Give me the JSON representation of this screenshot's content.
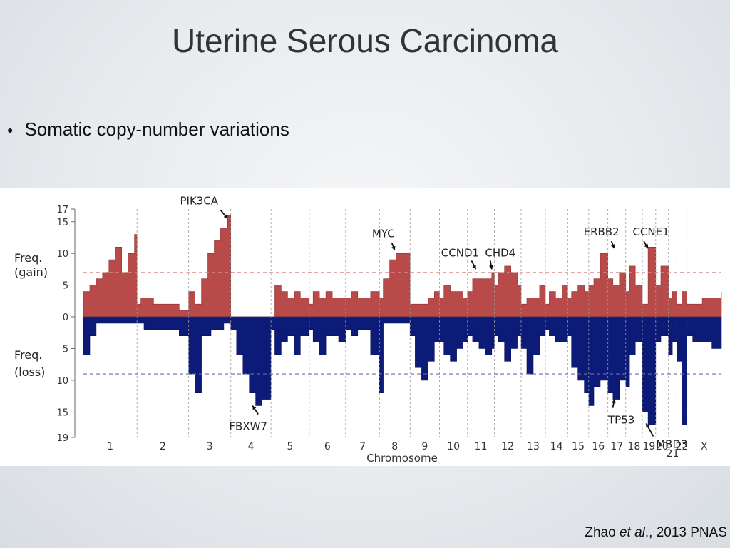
{
  "slide": {
    "title": "Uterine Serous Carcinoma",
    "bullet": "Somatic copy-number variations",
    "citation_author": "Zhao ",
    "citation_etal": "et al",
    "citation_rest": "., 2013 PNAS"
  },
  "chart_data": {
    "type": "area",
    "xlabel": "Chromosome",
    "ylabel_gain": "Freq.\n(gain)",
    "ylabel_loss": "Freq.\n(loss)",
    "gain_ylim": [
      0,
      17
    ],
    "loss_ylim": [
      0,
      19
    ],
    "gain_ticks": [
      0,
      5,
      10,
      15,
      17
    ],
    "loss_ticks": [
      5,
      10,
      15,
      19
    ],
    "gain_threshold": 7,
    "loss_threshold": 9,
    "colors": {
      "gain": "#b84a4a",
      "loss": "#0c1a78",
      "gain_threshold": "#d98888",
      "loss_threshold": "#6a6aaa",
      "grid": "#9a9a9a"
    },
    "x_range": [
      0,
      100
    ],
    "chromosomes": [
      {
        "label": "1",
        "start": 0,
        "end": 8.4
      },
      {
        "label": "2",
        "start": 8.4,
        "end": 16.5
      },
      {
        "label": "3",
        "start": 16.5,
        "end": 23.1
      },
      {
        "label": "4",
        "start": 23.1,
        "end": 29.4
      },
      {
        "label": "5",
        "start": 29.4,
        "end": 35.4
      },
      {
        "label": "6",
        "start": 35.4,
        "end": 41.1
      },
      {
        "label": "7",
        "start": 41.1,
        "end": 46.4
      },
      {
        "label": "8",
        "start": 46.4,
        "end": 51.2
      },
      {
        "label": "9",
        "start": 51.2,
        "end": 55.8
      },
      {
        "label": "10",
        "start": 55.8,
        "end": 60.2
      },
      {
        "label": "11",
        "start": 60.2,
        "end": 64.4
      },
      {
        "label": "12",
        "start": 64.4,
        "end": 68.6
      },
      {
        "label": "13",
        "start": 68.6,
        "end": 72.4
      },
      {
        "label": "14",
        "start": 72.4,
        "end": 75.9
      },
      {
        "label": "15",
        "start": 75.9,
        "end": 79.2
      },
      {
        "label": "16",
        "start": 79.2,
        "end": 82.2
      },
      {
        "label": "17",
        "start": 82.2,
        "end": 85.0
      },
      {
        "label": "18",
        "start": 85.0,
        "end": 87.6
      },
      {
        "label": "19",
        "start": 87.6,
        "end": 89.7
      },
      {
        "label": "20",
        "start": 89.7,
        "end": 91.7
      },
      {
        "label": "21",
        "start": 91.7,
        "end": 93.0
      },
      {
        "label": "22",
        "start": 93.0,
        "end": 94.6
      },
      {
        "label": "X",
        "start": 94.6,
        "end": 100
      }
    ],
    "gain_profile": [
      [
        0,
        4
      ],
      [
        1,
        5
      ],
      [
        2,
        6
      ],
      [
        3,
        7
      ],
      [
        4,
        9
      ],
      [
        5,
        11
      ],
      [
        6,
        7
      ],
      [
        7,
        10
      ],
      [
        8,
        13
      ],
      [
        8.4,
        2
      ],
      [
        9,
        3
      ],
      [
        11,
        2
      ],
      [
        13,
        2
      ],
      [
        15,
        1
      ],
      [
        16.5,
        4
      ],
      [
        17.5,
        2
      ],
      [
        18.5,
        6
      ],
      [
        19.5,
        10
      ],
      [
        20.5,
        12
      ],
      [
        21.5,
        14
      ],
      [
        22.6,
        16
      ],
      [
        23.1,
        0
      ],
      [
        24,
        0
      ],
      [
        27,
        0
      ],
      [
        29.4,
        0
      ],
      [
        30,
        5
      ],
      [
        31,
        4
      ],
      [
        32,
        3
      ],
      [
        33,
        4
      ],
      [
        34,
        3
      ],
      [
        35.4,
        2
      ],
      [
        36,
        4
      ],
      [
        37,
        3
      ],
      [
        38,
        4
      ],
      [
        39,
        3
      ],
      [
        40,
        3
      ],
      [
        41.1,
        3
      ],
      [
        42,
        4
      ],
      [
        43,
        3
      ],
      [
        44,
        3
      ],
      [
        45,
        4
      ],
      [
        46.4,
        3
      ],
      [
        47,
        6
      ],
      [
        48,
        9
      ],
      [
        49,
        10
      ],
      [
        50,
        10
      ],
      [
        51.2,
        2
      ],
      [
        52,
        2
      ],
      [
        53,
        2
      ],
      [
        54,
        3
      ],
      [
        55,
        4
      ],
      [
        55.8,
        3
      ],
      [
        56.5,
        5
      ],
      [
        57.5,
        4
      ],
      [
        58.5,
        4
      ],
      [
        59.5,
        3
      ],
      [
        60.2,
        4
      ],
      [
        61,
        6
      ],
      [
        62,
        6
      ],
      [
        63,
        6
      ],
      [
        64,
        7
      ],
      [
        64.4,
        5
      ],
      [
        65,
        7
      ],
      [
        66,
        8
      ],
      [
        67,
        7
      ],
      [
        68,
        5
      ],
      [
        68.6,
        2
      ],
      [
        69.5,
        3
      ],
      [
        70.5,
        3
      ],
      [
        71.5,
        5
      ],
      [
        72.4,
        2
      ],
      [
        73,
        4
      ],
      [
        74,
        3
      ],
      [
        75,
        5
      ],
      [
        75.9,
        3
      ],
      [
        76.5,
        4
      ],
      [
        77.5,
        5
      ],
      [
        78.5,
        4
      ],
      [
        79.2,
        5
      ],
      [
        80,
        6
      ],
      [
        81,
        10
      ],
      [
        82.2,
        6
      ],
      [
        83,
        5
      ],
      [
        84,
        7
      ],
      [
        85,
        4
      ],
      [
        85.6,
        8
      ],
      [
        86.5,
        5
      ],
      [
        87.6,
        2
      ],
      [
        88.5,
        11
      ],
      [
        89.7,
        5
      ],
      [
        90.5,
        8
      ],
      [
        91.7,
        3
      ],
      [
        92.3,
        4
      ],
      [
        93,
        2
      ],
      [
        93.8,
        4
      ],
      [
        94.6,
        2
      ],
      [
        95.5,
        2
      ],
      [
        97,
        3
      ],
      [
        98.5,
        3
      ],
      [
        100,
        4
      ]
    ],
    "loss_profile": [
      [
        0,
        6
      ],
      [
        1,
        3
      ],
      [
        2,
        1
      ],
      [
        4,
        1
      ],
      [
        6,
        1
      ],
      [
        8.4,
        1
      ],
      [
        9.5,
        2
      ],
      [
        11,
        2
      ],
      [
        13,
        2
      ],
      [
        15,
        3
      ],
      [
        16.5,
        9
      ],
      [
        17.5,
        12
      ],
      [
        18.5,
        3
      ],
      [
        20,
        2
      ],
      [
        22,
        1
      ],
      [
        23.1,
        2
      ],
      [
        24,
        6
      ],
      [
        25,
        9
      ],
      [
        26,
        12
      ],
      [
        27,
        14
      ],
      [
        28,
        13
      ],
      [
        29.4,
        2
      ],
      [
        30,
        6
      ],
      [
        31,
        4
      ],
      [
        32,
        3
      ],
      [
        33,
        6
      ],
      [
        34,
        3
      ],
      [
        35.4,
        2
      ],
      [
        36,
        4
      ],
      [
        37,
        6
      ],
      [
        38,
        3
      ],
      [
        39,
        3
      ],
      [
        40,
        4
      ],
      [
        41.1,
        2
      ],
      [
        42,
        3
      ],
      [
        43,
        2
      ],
      [
        44,
        2
      ],
      [
        45,
        6
      ],
      [
        46.4,
        12
      ],
      [
        47,
        1
      ],
      [
        48,
        1
      ],
      [
        50,
        1
      ],
      [
        51.2,
        3
      ],
      [
        52,
        8
      ],
      [
        53,
        10
      ],
      [
        54,
        7
      ],
      [
        55,
        4
      ],
      [
        55.8,
        4
      ],
      [
        56.5,
        6
      ],
      [
        57.5,
        7
      ],
      [
        58.5,
        5
      ],
      [
        59.5,
        4
      ],
      [
        60.2,
        3
      ],
      [
        61,
        4
      ],
      [
        62,
        5
      ],
      [
        63,
        6
      ],
      [
        64,
        5
      ],
      [
        64.4,
        3
      ],
      [
        65,
        4
      ],
      [
        66,
        7
      ],
      [
        67,
        5
      ],
      [
        68,
        3
      ],
      [
        68.6,
        5
      ],
      [
        69.5,
        9
      ],
      [
        70.5,
        6
      ],
      [
        71.5,
        3
      ],
      [
        72.4,
        2
      ],
      [
        73,
        3
      ],
      [
        74,
        4
      ],
      [
        75,
        4
      ],
      [
        75.9,
        3
      ],
      [
        76.5,
        8
      ],
      [
        77.5,
        10
      ],
      [
        78.5,
        12
      ],
      [
        79.2,
        14
      ],
      [
        80,
        11
      ],
      [
        81,
        10
      ],
      [
        82.2,
        12
      ],
      [
        83,
        13
      ],
      [
        84,
        10
      ],
      [
        85,
        11
      ],
      [
        85.6,
        6
      ],
      [
        86.5,
        4
      ],
      [
        87.6,
        15
      ],
      [
        88.5,
        17
      ],
      [
        89.7,
        4
      ],
      [
        90.5,
        3
      ],
      [
        91.7,
        6
      ],
      [
        92.3,
        4
      ],
      [
        93,
        7
      ],
      [
        93.8,
        17
      ],
      [
        94.6,
        3
      ],
      [
        95.5,
        4
      ],
      [
        97,
        4
      ],
      [
        98.5,
        5
      ],
      [
        100,
        5
      ]
    ],
    "gene_annotations": [
      {
        "gene": "PIK3CA",
        "x": 22.6,
        "value": 15.5,
        "side": "gain"
      },
      {
        "gene": "MYC",
        "x": 48.8,
        "value": 10.5,
        "side": "gain"
      },
      {
        "gene": "CCND1",
        "x": 61.5,
        "value": 7.5,
        "side": "gain"
      },
      {
        "gene": "CHD4",
        "x": 64.0,
        "value": 7.5,
        "side": "gain"
      },
      {
        "gene": "ERBB2",
        "x": 83.2,
        "value": 10.8,
        "side": "gain"
      },
      {
        "gene": "CCNE1",
        "x": 88.5,
        "value": 10.8,
        "side": "gain"
      },
      {
        "gene": "FBXW7",
        "x": 26.5,
        "value": 14.0,
        "side": "loss"
      },
      {
        "gene": "TP53",
        "x": 83.2,
        "value": 13.0,
        "side": "loss"
      },
      {
        "gene": "MBD3",
        "x": 88.2,
        "value": 16.8,
        "side": "loss"
      }
    ]
  }
}
